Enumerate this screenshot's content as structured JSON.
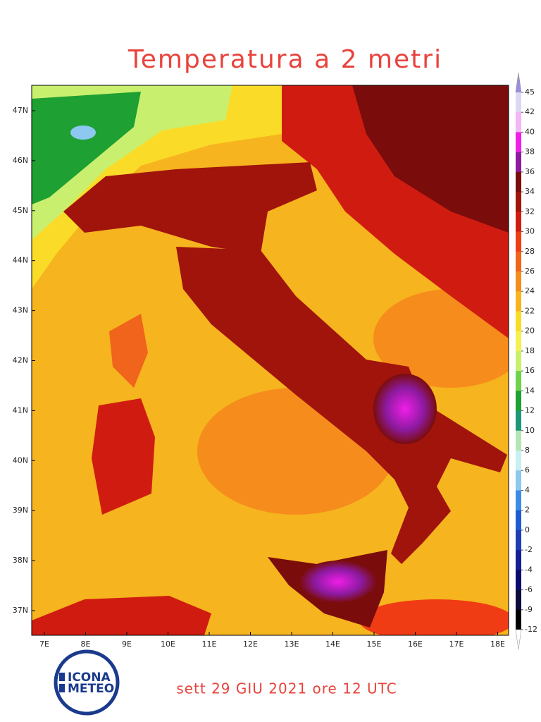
{
  "header": {
    "title": "Temperatura a 2 metri"
  },
  "map": {
    "lat_labels": [
      "47N",
      "46N",
      "45N",
      "44N",
      "43N",
      "42N",
      "41N",
      "40N",
      "39N",
      "38N",
      "37N"
    ],
    "lon_labels": [
      "7E",
      "8E",
      "9E",
      "10E",
      "11E",
      "12E",
      "13E",
      "14E",
      "15E",
      "16E",
      "17E",
      "18E"
    ]
  },
  "colorbar": {
    "labels": [
      "45",
      "42",
      "40",
      "38",
      "36",
      "34",
      "32",
      "30",
      "28",
      "26",
      "24",
      "22",
      "20",
      "18",
      "16",
      "14",
      "12",
      "10",
      "8",
      "6",
      "4",
      "2",
      "0",
      "-2",
      "-4",
      "-6",
      "-9",
      "-12"
    ],
    "top_color": "#9b8ee0",
    "bottom_color": "#ffffff",
    "colors": [
      "#dcd8f4",
      "#f4b6f4",
      "#f01ee8",
      "#8c1aa0",
      "#7a0c0c",
      "#a0140c",
      "#d01c10",
      "#f03c14",
      "#f0641c",
      "#f68c1c",
      "#f6b41e",
      "#fadc28",
      "#f6f050",
      "#c8f06e",
      "#6ed24a",
      "#1ea032",
      "#1e9678",
      "#b4e6b4",
      "#c8f0f0",
      "#8cc8f0",
      "#3c8ce6",
      "#1e5ad2",
      "#1e3cb4",
      "#141e96",
      "#0a0a6e",
      "#0a0a3c",
      "#000000"
    ]
  },
  "footer": {
    "date": "sett 29 GIU 2021 ore 12 UTC",
    "logo_top": "ICONA",
    "logo_bottom": "METEO"
  }
}
